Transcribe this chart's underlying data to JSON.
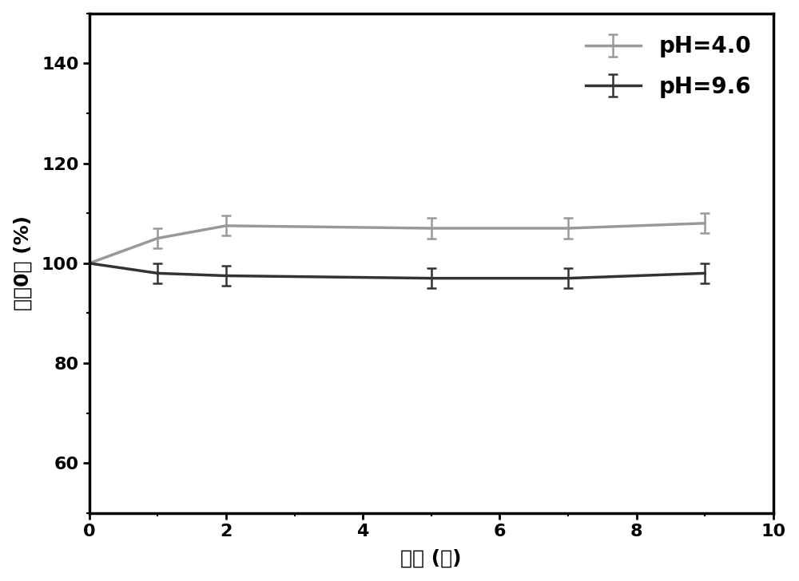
{
  "x_ph40": [
    0,
    1,
    2,
    5,
    7,
    9
  ],
  "y_ph40": [
    100,
    105,
    107.5,
    107,
    107,
    108
  ],
  "yerr_ph40": [
    0,
    2.0,
    2.0,
    2.0,
    2.0,
    2.0
  ],
  "x_ph96": [
    0,
    1,
    2,
    5,
    7,
    9
  ],
  "y_ph96": [
    100,
    98,
    97.5,
    97,
    97,
    98
  ],
  "yerr_ph96": [
    0,
    2.0,
    2.0,
    2.0,
    2.0,
    2.0
  ],
  "color_ph40": "#999999",
  "color_ph96": "#333333",
  "label_ph40": "pH=4.0",
  "label_ph96": "pH=9.6",
  "xlabel": "时间 (天)",
  "ylabel": "溶耠0率 (%)",
  "xlim": [
    0,
    10
  ],
  "ylim": [
    50,
    150
  ],
  "yticks": [
    60,
    80,
    100,
    120,
    140
  ],
  "xticks": [
    0,
    2,
    4,
    6,
    8,
    10
  ],
  "linewidth": 2.5,
  "capsize": 4,
  "marker_size": 4,
  "legend_fontsize": 20,
  "axis_fontsize": 18,
  "tick_fontsize": 16,
  "background_color": "#ffffff"
}
